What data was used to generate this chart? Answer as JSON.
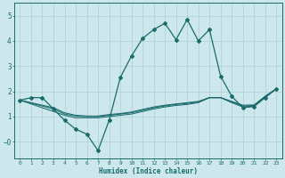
{
  "xlabel": "Humidex (Indice chaleur)",
  "bg_color": "#cce8ec",
  "grid_color": "#b0cdd4",
  "line_color": "#1a6b6b",
  "xlim": [
    -0.5,
    23.5
  ],
  "ylim": [
    -0.65,
    5.5
  ],
  "xticks": [
    0,
    1,
    2,
    3,
    4,
    5,
    6,
    7,
    8,
    9,
    10,
    11,
    12,
    13,
    14,
    15,
    16,
    17,
    18,
    19,
    20,
    21,
    22,
    23
  ],
  "yticks": [
    0,
    1,
    2,
    3,
    4,
    5
  ],
  "line1_x": [
    0,
    1,
    2,
    3,
    4,
    5,
    6,
    7,
    8,
    9,
    10,
    11,
    12,
    13,
    14,
    15,
    16,
    17,
    18,
    19,
    20,
    21,
    22,
    23
  ],
  "line1_y": [
    1.65,
    1.75,
    1.75,
    1.3,
    0.85,
    0.5,
    0.3,
    -0.35,
    0.85,
    2.55,
    3.4,
    4.1,
    4.45,
    4.7,
    4.05,
    4.85,
    4.0,
    4.45,
    2.6,
    1.8,
    1.35,
    1.4,
    1.75,
    2.1
  ],
  "line2_x": [
    0,
    3,
    4,
    5,
    6,
    7,
    8,
    9,
    10,
    11,
    12,
    13,
    14,
    15,
    16,
    17,
    18,
    19,
    20,
    21,
    22,
    23
  ],
  "line2_y": [
    1.65,
    1.2,
    1.05,
    0.95,
    0.95,
    0.95,
    1.0,
    1.05,
    1.1,
    1.2,
    1.3,
    1.38,
    1.44,
    1.48,
    1.55,
    1.75,
    1.75,
    1.55,
    1.38,
    1.42,
    1.8,
    2.1
  ],
  "line3_x": [
    0,
    3,
    4,
    5,
    6,
    7,
    8,
    9,
    10,
    11,
    12,
    13,
    14,
    15,
    16,
    17,
    18,
    19,
    20,
    21,
    22,
    23
  ],
  "line3_y": [
    1.65,
    1.3,
    1.1,
    1.02,
    1.0,
    1.0,
    1.05,
    1.1,
    1.15,
    1.25,
    1.35,
    1.42,
    1.48,
    1.52,
    1.58,
    1.75,
    1.75,
    1.58,
    1.42,
    1.44,
    1.8,
    2.1
  ],
  "line4_x": [
    0,
    3,
    4,
    5,
    6,
    7,
    8,
    9,
    10,
    11,
    12,
    13,
    14,
    15,
    16,
    17,
    18,
    19,
    20,
    21,
    22,
    23
  ],
  "line4_y": [
    1.65,
    1.35,
    1.15,
    1.05,
    1.02,
    1.02,
    1.08,
    1.12,
    1.18,
    1.28,
    1.38,
    1.45,
    1.5,
    1.55,
    1.6,
    1.75,
    1.75,
    1.6,
    1.45,
    1.46,
    1.8,
    2.1
  ]
}
